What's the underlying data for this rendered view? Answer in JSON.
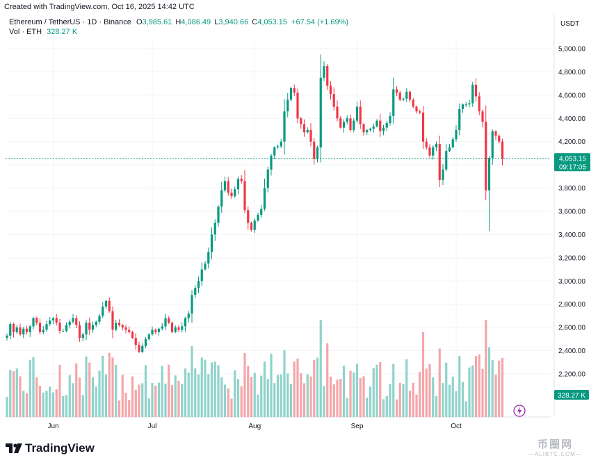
{
  "header": {
    "created": "Created with TradingView.com, Oct 16, 2025 14:42 UTC"
  },
  "legend": {
    "symbol": "Ethereum / TetherUS · 1D · Binance",
    "o_label": "O",
    "o_value": "3,985.61",
    "h_label": "H",
    "h_value": "4,086.49",
    "l_label": "L",
    "l_value": "3,940.66",
    "c_label": "C",
    "c_value": "4,053.15",
    "change": "+67.54 (+1.69%)",
    "vol_label": "Vol · ETH",
    "vol_value": "328.27 K"
  },
  "colors": {
    "up": "#089981",
    "down": "#f23645",
    "vol_up": "#8fd3cb",
    "vol_down": "#f4a6a9",
    "grid": "#f0f3fa",
    "axis_text": "#131722",
    "price_line": "#089981"
  },
  "chart_data": {
    "type": "candlestick",
    "title": "Ethereum / TetherUS · 1D · Binance",
    "currency": "USDT",
    "ylim": [
      1950,
      5150
    ],
    "y_ticks": [
      "5,000.00",
      "4,800.00",
      "4,600.00",
      "4,400.00",
      "4,200.00",
      "4,000.00",
      "3,800.00",
      "3,600.00",
      "3,400.00",
      "3,200.00",
      "3,000.00",
      "2,800.00",
      "2,600.00",
      "2,400.00",
      "2,200.00"
    ],
    "y_tick_values": [
      5000,
      4800,
      4600,
      4400,
      4200,
      4000,
      3800,
      3600,
      3400,
      3200,
      3000,
      2800,
      2600,
      2400,
      2200
    ],
    "x_labels": [
      "Jun",
      "Jul",
      "Aug",
      "Sep",
      "Oct"
    ],
    "x_label_index": [
      14,
      44,
      75,
      106,
      136
    ],
    "last_price": "4,053.15",
    "last_price_value": 4053.15,
    "countdown": "09:17:05",
    "volume_label": "328.27 K",
    "closes": [
      2530,
      2630,
      2560,
      2600,
      2540,
      2590,
      2560,
      2610,
      2680,
      2640,
      2560,
      2580,
      2630,
      2660,
      2680,
      2640,
      2570,
      2570,
      2620,
      2650,
      2680,
      2620,
      2510,
      2540,
      2640,
      2580,
      2620,
      2650,
      2700,
      2780,
      2830,
      2740,
      2580,
      2640,
      2620,
      2600,
      2580,
      2560,
      2510,
      2450,
      2390,
      2440,
      2500,
      2540,
      2580,
      2560,
      2590,
      2610,
      2680,
      2640,
      2560,
      2600,
      2580,
      2610,
      2680,
      2720,
      2880,
      2940,
      3000,
      3100,
      3150,
      3250,
      3400,
      3500,
      3640,
      3780,
      3860,
      3760,
      3730,
      3790,
      3880,
      3860,
      3610,
      3500,
      3440,
      3520,
      3570,
      3620,
      3800,
      3960,
      4080,
      4150,
      4160,
      4200,
      4460,
      4560,
      4660,
      4620,
      4400,
      4350,
      4280,
      4300,
      4200,
      4050,
      4150,
      4750,
      4850,
      4680,
      4610,
      4500,
      4400,
      4320,
      4370,
      4400,
      4300,
      4380,
      4500,
      4350,
      4280,
      4300,
      4310,
      4330,
      4380,
      4290,
      4320,
      4360,
      4420,
      4650,
      4620,
      4560,
      4570,
      4630,
      4560,
      4500,
      4460,
      4450,
      4200,
      4150,
      4080,
      4150,
      4180,
      3870,
      3960,
      4120,
      4150,
      4220,
      4300,
      4480,
      4520,
      4520,
      4530,
      4690,
      4590,
      4460,
      4370,
      3780,
      4060,
      4290,
      4250,
      4200,
      4053
    ]
  }
}
